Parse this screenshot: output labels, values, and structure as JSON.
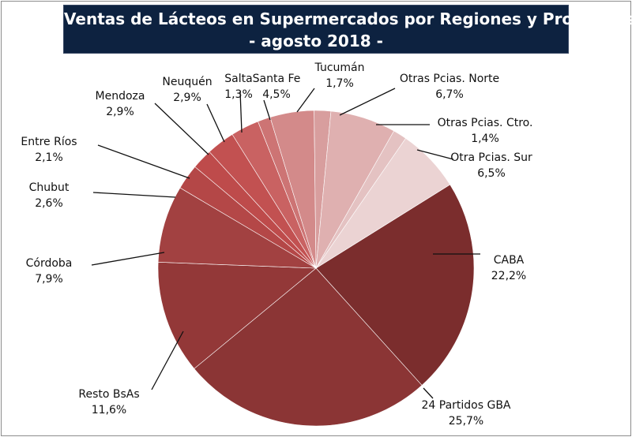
{
  "header": {
    "title_line1": "Ventas de Lácteos en Supermercados por Regiones y Provincias",
    "title_line2": "- agosto 2018 -"
  },
  "chart_data": {
    "type": "pie",
    "title": "Ventas de Lácteos en Supermercados por Regiones y Provincias - agosto 2018 -",
    "slices": [
      {
        "label": "CABA",
        "value": 22.2,
        "display": "22,2%",
        "color": "#7b2d2d"
      },
      {
        "label": "24 Partidos GBA",
        "value": 25.7,
        "display": "25,7%",
        "color": "#8b3535"
      },
      {
        "label": "Resto BsAs",
        "value": 11.6,
        "display": "11,6%",
        "color": "#933838"
      },
      {
        "label": "Córdoba",
        "value": 7.9,
        "display": "7,9%",
        "color": "#a24141"
      },
      {
        "label": "Chubut",
        "value": 2.6,
        "display": "2,6%",
        "color": "#b44747"
      },
      {
        "label": "Entre Ríos",
        "value": 2.1,
        "display": "2,1%",
        "color": "#be4b4b"
      },
      {
        "label": "Mendoza",
        "value": 2.9,
        "display": "2,9%",
        "color": "#c25151"
      },
      {
        "label": "Neuquén",
        "value": 2.9,
        "display": "2,9%",
        "color": "#c96262"
      },
      {
        "label": "Salta",
        "value": 1.3,
        "display": "1,3%",
        "color": "#cd7474"
      },
      {
        "label": "Santa Fe",
        "value": 4.5,
        "display": "4,5%",
        "color": "#d38a8a"
      },
      {
        "label": "Tucumán",
        "value": 1.7,
        "display": "1,7%",
        "color": "#d89e9e"
      },
      {
        "label": "Otras Pcias. Norte",
        "value": 6.7,
        "display": "6,7%",
        "color": "#dfb0b0"
      },
      {
        "label": "Otras Pcias. Ctro.",
        "value": 1.4,
        "display": "1,4%",
        "color": "#e4c2c2"
      },
      {
        "label": "Otra Pcias. Sur",
        "value": 6.5,
        "display": "6,5%",
        "color": "#ebd3d3"
      }
    ],
    "legend": "none"
  }
}
